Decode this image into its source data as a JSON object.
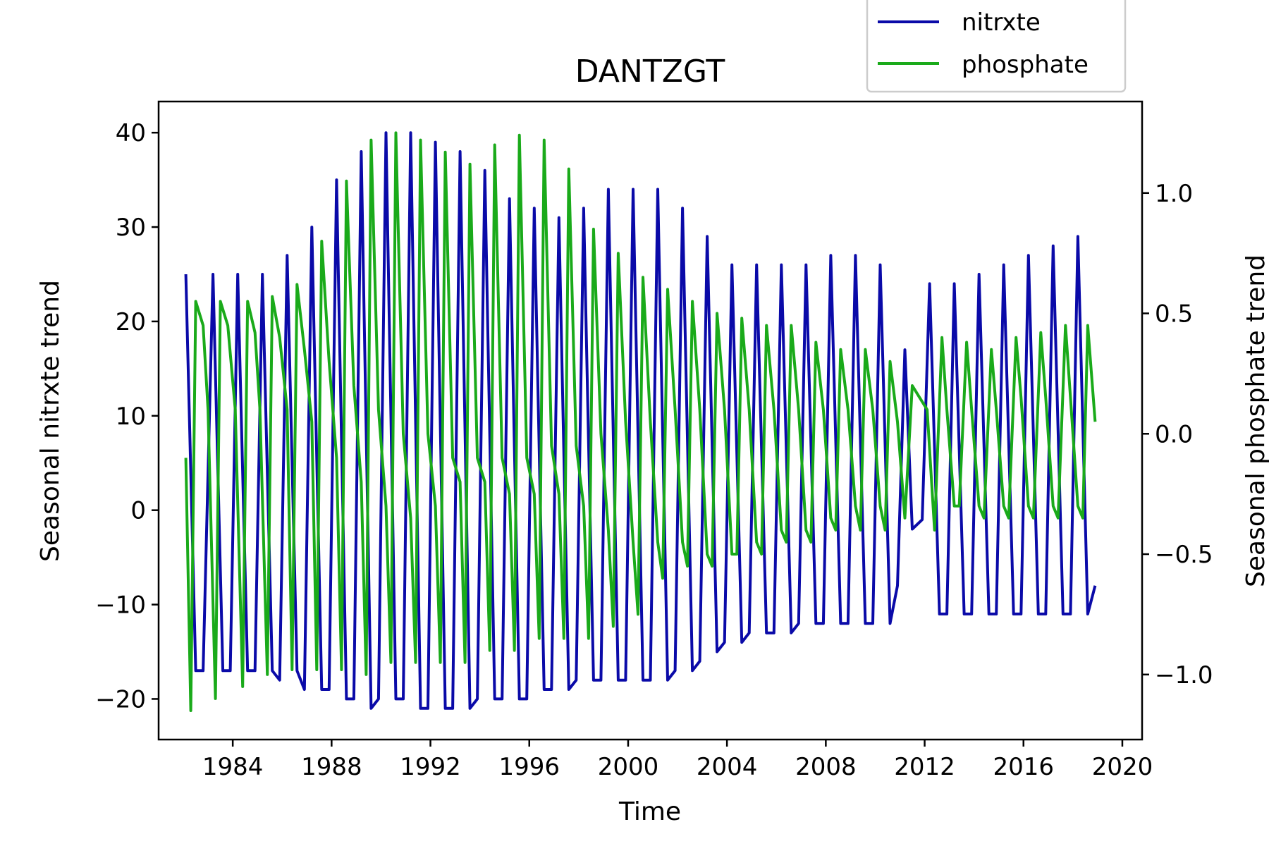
{
  "chart_data": {
    "type": "line",
    "title": "DANTZGT",
    "xlabel": "Time",
    "ylabel_left": "Seasonal nitrxte trend",
    "ylabel_right": "Seasonal phosphate trend",
    "xlim": [
      1981.0,
      2020.8
    ],
    "ylim_left": [
      -24.3,
      43.3
    ],
    "ylim_right": [
      -1.27,
      1.38
    ],
    "xticks": [
      1984,
      1988,
      1992,
      1996,
      2000,
      2004,
      2008,
      2012,
      2016,
      2020
    ],
    "yticks_left": [
      -20,
      -10,
      0,
      10,
      20,
      30,
      40
    ],
    "yticks_right": [
      -1.0,
      -0.5,
      0.0,
      0.5,
      1.0
    ],
    "ytick_labels_right": [
      "−1.0",
      "−0.5",
      "0.0",
      "0.5",
      "1.0"
    ],
    "ytick_labels_left": [
      "−20",
      "−10",
      "0",
      "10",
      "20",
      "30",
      "40"
    ],
    "legend": {
      "placement": "top-right, outside above axes",
      "entries": [
        "nitrxte",
        "phosphate"
      ]
    },
    "series": [
      {
        "name": "nitrxte",
        "axis": "left",
        "color": "#0a0aa8",
        "points": [
          [
            1982.1,
            25
          ],
          [
            1982.5,
            -17
          ],
          [
            1982.8,
            -17
          ],
          [
            1983.2,
            25
          ],
          [
            1983.6,
            -17
          ],
          [
            1983.9,
            -17
          ],
          [
            1984.2,
            25
          ],
          [
            1984.6,
            -17
          ],
          [
            1984.9,
            -17
          ],
          [
            1985.2,
            25
          ],
          [
            1985.6,
            -17
          ],
          [
            1985.9,
            -18
          ],
          [
            1986.2,
            27
          ],
          [
            1986.6,
            -17
          ],
          [
            1986.9,
            -19
          ],
          [
            1987.2,
            30
          ],
          [
            1987.6,
            -19
          ],
          [
            1987.9,
            -19
          ],
          [
            1988.2,
            35
          ],
          [
            1988.6,
            -20
          ],
          [
            1988.9,
            -20
          ],
          [
            1989.2,
            38
          ],
          [
            1989.6,
            -21
          ],
          [
            1989.9,
            -20
          ],
          [
            1990.2,
            40
          ],
          [
            1990.6,
            -20
          ],
          [
            1990.9,
            -20
          ],
          [
            1991.2,
            40
          ],
          [
            1991.6,
            -21
          ],
          [
            1991.9,
            -21
          ],
          [
            1992.2,
            39
          ],
          [
            1992.6,
            -21
          ],
          [
            1992.9,
            -21
          ],
          [
            1993.2,
            38
          ],
          [
            1993.6,
            -21
          ],
          [
            1993.9,
            -20
          ],
          [
            1994.2,
            36
          ],
          [
            1994.6,
            -20
          ],
          [
            1994.9,
            -20
          ],
          [
            1995.2,
            33
          ],
          [
            1995.6,
            -20
          ],
          [
            1995.9,
            -20
          ],
          [
            1996.2,
            32
          ],
          [
            1996.6,
            -19
          ],
          [
            1996.9,
            -19
          ],
          [
            1997.2,
            31
          ],
          [
            1997.6,
            -19
          ],
          [
            1997.9,
            -18
          ],
          [
            1998.2,
            32
          ],
          [
            1998.6,
            -18
          ],
          [
            1998.9,
            -18
          ],
          [
            1999.2,
            34
          ],
          [
            1999.6,
            -18
          ],
          [
            1999.9,
            -18
          ],
          [
            2000.2,
            34
          ],
          [
            2000.6,
            -18
          ],
          [
            2000.9,
            -18
          ],
          [
            2001.2,
            34
          ],
          [
            2001.6,
            -18
          ],
          [
            2001.9,
            -17
          ],
          [
            2002.2,
            32
          ],
          [
            2002.6,
            -17
          ],
          [
            2002.9,
            -16
          ],
          [
            2003.2,
            29
          ],
          [
            2003.6,
            -15
          ],
          [
            2003.9,
            -14
          ],
          [
            2004.2,
            26
          ],
          [
            2004.6,
            -14
          ],
          [
            2004.9,
            -13
          ],
          [
            2005.2,
            26
          ],
          [
            2005.6,
            -13
          ],
          [
            2005.9,
            -13
          ],
          [
            2006.2,
            26
          ],
          [
            2006.6,
            -13
          ],
          [
            2006.9,
            -12
          ],
          [
            2007.2,
            26
          ],
          [
            2007.6,
            -12
          ],
          [
            2007.9,
            -12
          ],
          [
            2008.2,
            27
          ],
          [
            2008.6,
            -12
          ],
          [
            2008.9,
            -12
          ],
          [
            2009.2,
            27
          ],
          [
            2009.6,
            -12
          ],
          [
            2009.9,
            -12
          ],
          [
            2010.2,
            26
          ],
          [
            2010.6,
            -12
          ],
          [
            2010.9,
            -8
          ],
          [
            2011.2,
            17
          ],
          [
            2011.5,
            -2
          ],
          [
            2011.9,
            -1
          ],
          [
            2012.2,
            24
          ],
          [
            2012.6,
            -11
          ],
          [
            2012.9,
            -11
          ],
          [
            2013.2,
            24
          ],
          [
            2013.6,
            -11
          ],
          [
            2013.9,
            -11
          ],
          [
            2014.2,
            25
          ],
          [
            2014.6,
            -11
          ],
          [
            2014.9,
            -11
          ],
          [
            2015.2,
            26
          ],
          [
            2015.6,
            -11
          ],
          [
            2015.9,
            -11
          ],
          [
            2016.2,
            27
          ],
          [
            2016.6,
            -11
          ],
          [
            2016.9,
            -11
          ],
          [
            2017.2,
            28
          ],
          [
            2017.6,
            -11
          ],
          [
            2017.9,
            -11
          ],
          [
            2018.2,
            29
          ],
          [
            2018.6,
            -11
          ],
          [
            2018.9,
            -8
          ]
        ]
      },
      {
        "name": "phosphate",
        "axis": "right",
        "color": "#1aaa1a",
        "points": [
          [
            1982.1,
            -0.1
          ],
          [
            1982.3,
            -1.15
          ],
          [
            1982.5,
            0.55
          ],
          [
            1982.8,
            0.45
          ],
          [
            1983.0,
            0.1
          ],
          [
            1983.3,
            -1.1
          ],
          [
            1983.5,
            0.55
          ],
          [
            1983.8,
            0.45
          ],
          [
            1984.1,
            0.1
          ],
          [
            1984.4,
            -1.05
          ],
          [
            1984.6,
            0.55
          ],
          [
            1984.9,
            0.42
          ],
          [
            1985.1,
            0.1
          ],
          [
            1985.4,
            -1.0
          ],
          [
            1985.6,
            0.57
          ],
          [
            1985.9,
            0.4
          ],
          [
            1986.2,
            0.1
          ],
          [
            1986.4,
            -0.98
          ],
          [
            1986.6,
            0.62
          ],
          [
            1986.9,
            0.35
          ],
          [
            1987.2,
            0.05
          ],
          [
            1987.4,
            -0.98
          ],
          [
            1987.6,
            0.8
          ],
          [
            1987.9,
            0.3
          ],
          [
            1988.2,
            -0.1
          ],
          [
            1988.4,
            -0.98
          ],
          [
            1988.6,
            1.05
          ],
          [
            1988.9,
            0.2
          ],
          [
            1989.2,
            -0.2
          ],
          [
            1989.4,
            -1.0
          ],
          [
            1989.6,
            1.22
          ],
          [
            1989.9,
            0.1
          ],
          [
            1990.2,
            -0.3
          ],
          [
            1990.4,
            -0.95
          ],
          [
            1990.6,
            1.25
          ],
          [
            1990.9,
            0.0
          ],
          [
            1991.2,
            -0.35
          ],
          [
            1991.4,
            -0.95
          ],
          [
            1991.6,
            1.22
          ],
          [
            1991.9,
            0.0
          ],
          [
            1992.2,
            -0.3
          ],
          [
            1992.4,
            -0.95
          ],
          [
            1992.6,
            1.17
          ],
          [
            1992.9,
            -0.1
          ],
          [
            1993.2,
            -0.2
          ],
          [
            1993.4,
            -0.95
          ],
          [
            1993.6,
            1.12
          ],
          [
            1993.9,
            -0.1
          ],
          [
            1994.2,
            -0.2
          ],
          [
            1994.4,
            -0.9
          ],
          [
            1994.6,
            1.2
          ],
          [
            1994.9,
            -0.1
          ],
          [
            1995.2,
            -0.25
          ],
          [
            1995.4,
            -0.9
          ],
          [
            1995.6,
            1.24
          ],
          [
            1995.9,
            -0.1
          ],
          [
            1996.2,
            -0.25
          ],
          [
            1996.4,
            -0.85
          ],
          [
            1996.6,
            1.22
          ],
          [
            1996.9,
            -0.05
          ],
          [
            1997.2,
            -0.25
          ],
          [
            1997.4,
            -0.85
          ],
          [
            1997.6,
            1.1
          ],
          [
            1997.9,
            -0.05
          ],
          [
            1998.2,
            -0.3
          ],
          [
            1998.4,
            -0.85
          ],
          [
            1998.6,
            0.85
          ],
          [
            1998.9,
            0.0
          ],
          [
            1999.2,
            -0.4
          ],
          [
            1999.4,
            -0.8
          ],
          [
            1999.6,
            0.75
          ],
          [
            1999.9,
            0.05
          ],
          [
            2000.2,
            -0.45
          ],
          [
            2000.4,
            -0.75
          ],
          [
            2000.6,
            0.65
          ],
          [
            2000.9,
            0.05
          ],
          [
            2001.2,
            -0.45
          ],
          [
            2001.4,
            -0.6
          ],
          [
            2001.6,
            0.6
          ],
          [
            2001.9,
            0.1
          ],
          [
            2002.2,
            -0.45
          ],
          [
            2002.4,
            -0.55
          ],
          [
            2002.6,
            0.55
          ],
          [
            2002.9,
            0.1
          ],
          [
            2003.2,
            -0.5
          ],
          [
            2003.4,
            -0.55
          ],
          [
            2003.6,
            0.5
          ],
          [
            2003.9,
            0.1
          ],
          [
            2004.2,
            -0.5
          ],
          [
            2004.4,
            -0.5
          ],
          [
            2004.6,
            0.48
          ],
          [
            2004.9,
            0.1
          ],
          [
            2005.2,
            -0.45
          ],
          [
            2005.4,
            -0.5
          ],
          [
            2005.6,
            0.45
          ],
          [
            2005.9,
            0.1
          ],
          [
            2006.2,
            -0.4
          ],
          [
            2006.4,
            -0.45
          ],
          [
            2006.6,
            0.45
          ],
          [
            2006.9,
            0.1
          ],
          [
            2007.2,
            -0.4
          ],
          [
            2007.4,
            -0.45
          ],
          [
            2007.6,
            0.38
          ],
          [
            2007.9,
            0.1
          ],
          [
            2008.2,
            -0.35
          ],
          [
            2008.4,
            -0.4
          ],
          [
            2008.6,
            0.35
          ],
          [
            2008.9,
            0.1
          ],
          [
            2009.2,
            -0.3
          ],
          [
            2009.4,
            -0.4
          ],
          [
            2009.6,
            0.35
          ],
          [
            2009.9,
            0.1
          ],
          [
            2010.2,
            -0.3
          ],
          [
            2010.4,
            -0.4
          ],
          [
            2010.6,
            0.3
          ],
          [
            2010.9,
            0.05
          ],
          [
            2011.2,
            -0.35
          ],
          [
            2011.5,
            0.2
          ],
          [
            2011.8,
            0.15
          ],
          [
            2012.1,
            0.1
          ],
          [
            2012.4,
            -0.4
          ],
          [
            2012.7,
            0.4
          ],
          [
            2012.9,
            0.1
          ],
          [
            2013.2,
            -0.3
          ],
          [
            2013.4,
            -0.3
          ],
          [
            2013.7,
            0.38
          ],
          [
            2013.9,
            0.1
          ],
          [
            2014.2,
            -0.3
          ],
          [
            2014.4,
            -0.35
          ],
          [
            2014.7,
            0.35
          ],
          [
            2014.9,
            0.1
          ],
          [
            2015.2,
            -0.3
          ],
          [
            2015.4,
            -0.35
          ],
          [
            2015.7,
            0.4
          ],
          [
            2015.9,
            0.15
          ],
          [
            2016.2,
            -0.3
          ],
          [
            2016.4,
            -0.35
          ],
          [
            2016.7,
            0.42
          ],
          [
            2016.9,
            0.15
          ],
          [
            2017.2,
            -0.3
          ],
          [
            2017.4,
            -0.35
          ],
          [
            2017.7,
            0.45
          ],
          [
            2017.9,
            0.15
          ],
          [
            2018.2,
            -0.3
          ],
          [
            2018.4,
            -0.35
          ],
          [
            2018.6,
            0.45
          ],
          [
            2018.9,
            0.05
          ]
        ]
      }
    ]
  }
}
